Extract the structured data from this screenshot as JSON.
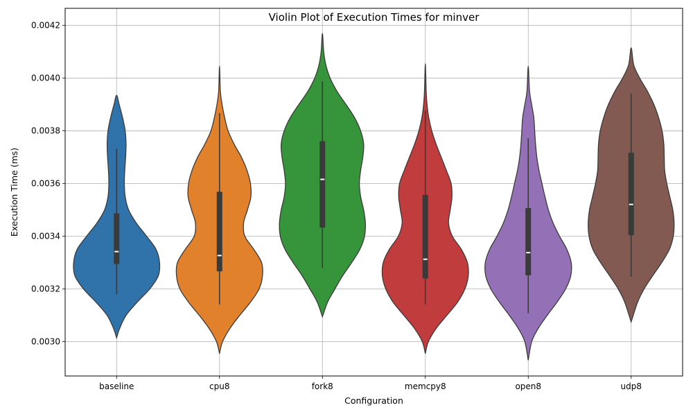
{
  "chart_data": {
    "type": "violin",
    "title": "Violin Plot of Execution Times for minver",
    "xlabel": "Configuration",
    "ylabel": "Execution Time (ms)",
    "ylim": [
      0.00287,
      0.004265
    ],
    "yticks": [
      0.003,
      0.0032,
      0.0034,
      0.0036,
      0.0038,
      0.004,
      0.0042
    ],
    "ytick_labels": [
      "0.0030",
      "0.0032",
      "0.0034",
      "0.0036",
      "0.0038",
      "0.0040",
      "0.0042"
    ],
    "grid": true,
    "categories": [
      "baseline",
      "cpu8",
      "fork8",
      "memcpy8",
      "open8",
      "udp8"
    ],
    "colors": [
      "#2f73aa",
      "#e2812c",
      "#36953a",
      "#c03c3d",
      "#9471b6",
      "#835a52"
    ],
    "series": [
      {
        "name": "baseline",
        "box": {
          "whisker_low": 0.00318,
          "q1": 0.003295,
          "median": 0.003342,
          "q3": 0.003487,
          "whisker_high": 0.003732
        },
        "density": [
          [
            0.003015,
            0.0
          ],
          [
            0.00305,
            0.07
          ],
          [
            0.0031,
            0.22
          ],
          [
            0.00315,
            0.48
          ],
          [
            0.0032,
            0.77
          ],
          [
            0.00325,
            0.97
          ],
          [
            0.0033,
            1.0
          ],
          [
            0.00335,
            0.92
          ],
          [
            0.0034,
            0.7
          ],
          [
            0.00345,
            0.46
          ],
          [
            0.0035,
            0.28
          ],
          [
            0.00355,
            0.2
          ],
          [
            0.0036,
            0.18
          ],
          [
            0.00365,
            0.19
          ],
          [
            0.0037,
            0.21
          ],
          [
            0.00375,
            0.22
          ],
          [
            0.0038,
            0.2
          ],
          [
            0.00385,
            0.14
          ],
          [
            0.0039,
            0.06
          ],
          [
            0.003935,
            0.0
          ]
        ]
      },
      {
        "name": "cpu8",
        "box": {
          "whisker_low": 0.003141,
          "q1": 0.003267,
          "median": 0.003327,
          "q3": 0.003569,
          "whisker_high": 0.003868
        },
        "density": [
          [
            0.002955,
            0.0
          ],
          [
            0.003,
            0.07
          ],
          [
            0.00305,
            0.24
          ],
          [
            0.0031,
            0.47
          ],
          [
            0.00315,
            0.72
          ],
          [
            0.0032,
            0.92
          ],
          [
            0.00325,
            1.0
          ],
          [
            0.0033,
            0.98
          ],
          [
            0.00335,
            0.8
          ],
          [
            0.0034,
            0.59
          ],
          [
            0.00345,
            0.56
          ],
          [
            0.0035,
            0.65
          ],
          [
            0.00355,
            0.73
          ],
          [
            0.0036,
            0.72
          ],
          [
            0.00365,
            0.64
          ],
          [
            0.0037,
            0.51
          ],
          [
            0.00375,
            0.34
          ],
          [
            0.0038,
            0.2
          ],
          [
            0.00385,
            0.12
          ],
          [
            0.0039,
            0.06
          ],
          [
            0.00395,
            0.02
          ],
          [
            0.004045,
            0.0
          ]
        ]
      },
      {
        "name": "fork8",
        "box": {
          "whisker_low": 0.003279,
          "q1": 0.003433,
          "median": 0.003616,
          "q3": 0.003761,
          "whisker_high": 0.003988
        },
        "density": [
          [
            0.003095,
            0.0
          ],
          [
            0.00315,
            0.12
          ],
          [
            0.0032,
            0.29
          ],
          [
            0.00325,
            0.47
          ],
          [
            0.0033,
            0.68
          ],
          [
            0.00335,
            0.87
          ],
          [
            0.0034,
            0.98
          ],
          [
            0.00345,
            1.0
          ],
          [
            0.0035,
            0.96
          ],
          [
            0.00355,
            0.89
          ],
          [
            0.0036,
            0.86
          ],
          [
            0.00365,
            0.89
          ],
          [
            0.0037,
            0.94
          ],
          [
            0.00375,
            0.96
          ],
          [
            0.0038,
            0.89
          ],
          [
            0.00385,
            0.75
          ],
          [
            0.0039,
            0.55
          ],
          [
            0.00395,
            0.34
          ],
          [
            0.004,
            0.18
          ],
          [
            0.00405,
            0.08
          ],
          [
            0.0041,
            0.03
          ],
          [
            0.00417,
            0.0
          ]
        ]
      },
      {
        "name": "memcpy8",
        "box": {
          "whisker_low": 0.003141,
          "q1": 0.00324,
          "median": 0.003313,
          "q3": 0.003557,
          "whisker_high": 0.003878
        },
        "density": [
          [
            0.002955,
            0.0
          ],
          [
            0.003,
            0.07
          ],
          [
            0.00305,
            0.25
          ],
          [
            0.0031,
            0.5
          ],
          [
            0.00315,
            0.75
          ],
          [
            0.0032,
            0.92
          ],
          [
            0.00325,
            1.0
          ],
          [
            0.0033,
            0.98
          ],
          [
            0.00335,
            0.84
          ],
          [
            0.0034,
            0.63
          ],
          [
            0.00345,
            0.54
          ],
          [
            0.0035,
            0.58
          ],
          [
            0.00355,
            0.62
          ],
          [
            0.0036,
            0.6
          ],
          [
            0.00365,
            0.49
          ],
          [
            0.0037,
            0.37
          ],
          [
            0.00375,
            0.25
          ],
          [
            0.0038,
            0.15
          ],
          [
            0.00385,
            0.08
          ],
          [
            0.0039,
            0.04
          ],
          [
            0.00395,
            0.02
          ],
          [
            0.004055,
            0.0
          ]
        ]
      },
      {
        "name": "open8",
        "box": {
          "whisker_low": 0.003108,
          "q1": 0.003252,
          "median": 0.003338,
          "q3": 0.003507,
          "whisker_high": 0.003772
        },
        "density": [
          [
            0.00293,
            0.0
          ],
          [
            0.003,
            0.08
          ],
          [
            0.00305,
            0.23
          ],
          [
            0.0031,
            0.44
          ],
          [
            0.00315,
            0.67
          ],
          [
            0.0032,
            0.87
          ],
          [
            0.00325,
            0.99
          ],
          [
            0.0033,
            1.0
          ],
          [
            0.00335,
            0.9
          ],
          [
            0.0034,
            0.73
          ],
          [
            0.00345,
            0.58
          ],
          [
            0.0035,
            0.47
          ],
          [
            0.00355,
            0.39
          ],
          [
            0.0036,
            0.32
          ],
          [
            0.00365,
            0.25
          ],
          [
            0.0037,
            0.2
          ],
          [
            0.00375,
            0.17
          ],
          [
            0.0038,
            0.15
          ],
          [
            0.00385,
            0.13
          ],
          [
            0.0039,
            0.08
          ],
          [
            0.00395,
            0.03
          ],
          [
            0.004045,
            0.0
          ]
        ]
      },
      {
        "name": "udp8",
        "box": {
          "whisker_low": 0.003247,
          "q1": 0.003404,
          "median": 0.003521,
          "q3": 0.003717,
          "whisker_high": 0.003942
        },
        "density": [
          [
            0.003075,
            0.0
          ],
          [
            0.00315,
            0.15
          ],
          [
            0.0032,
            0.3
          ],
          [
            0.00325,
            0.5
          ],
          [
            0.0033,
            0.71
          ],
          [
            0.00335,
            0.89
          ],
          [
            0.0034,
            0.98
          ],
          [
            0.00345,
            1.0
          ],
          [
            0.0035,
            0.97
          ],
          [
            0.00355,
            0.9
          ],
          [
            0.0036,
            0.83
          ],
          [
            0.00365,
            0.78
          ],
          [
            0.0037,
            0.77
          ],
          [
            0.00375,
            0.76
          ],
          [
            0.0038,
            0.72
          ],
          [
            0.00385,
            0.64
          ],
          [
            0.0039,
            0.53
          ],
          [
            0.00395,
            0.38
          ],
          [
            0.004,
            0.2
          ],
          [
            0.00405,
            0.06
          ],
          [
            0.004115,
            0.0
          ]
        ]
      }
    ]
  }
}
